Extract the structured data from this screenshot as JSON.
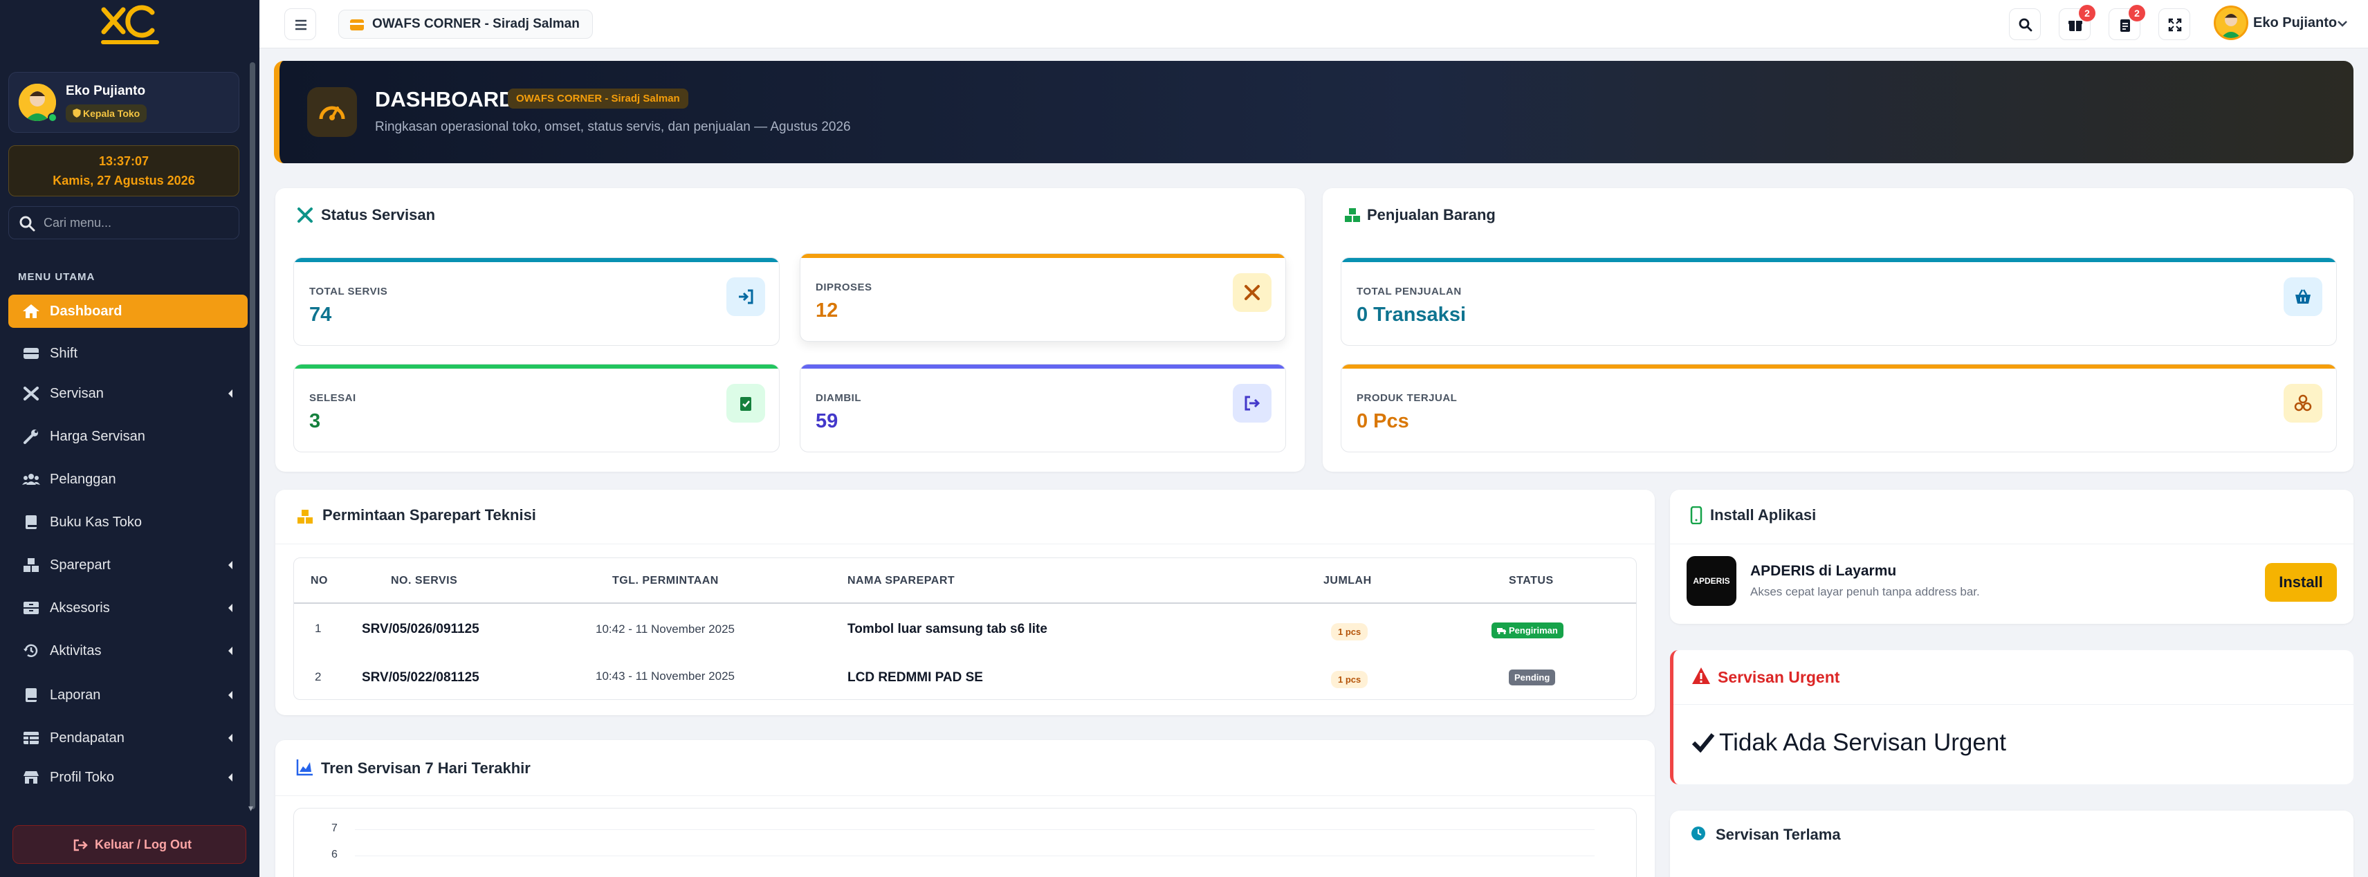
{
  "sidebar": {
    "user_name": "Eko Pujianto",
    "role": "Kepala Toko",
    "clock_time": "13:37:07",
    "clock_date": "Kamis, 27 Agustus 2026",
    "search_placeholder": "Cari menu...",
    "menu_header": "MENU UTAMA",
    "items": [
      {
        "label": "Dashboard",
        "icon": "home-icon",
        "active": true,
        "has_children": false
      },
      {
        "label": "Shift",
        "icon": "tray-icon",
        "active": false,
        "has_children": false
      },
      {
        "label": "Servisan",
        "icon": "tools-icon",
        "active": false,
        "has_children": true
      },
      {
        "label": "Harga Servisan",
        "icon": "wrench-icon",
        "active": false,
        "has_children": false
      },
      {
        "label": "Pelanggan",
        "icon": "users-icon",
        "active": false,
        "has_children": false
      },
      {
        "label": "Buku Kas Toko",
        "icon": "book-icon",
        "active": false,
        "has_children": false
      },
      {
        "label": "Sparepart",
        "icon": "boxes-icon",
        "active": false,
        "has_children": true
      },
      {
        "label": "Aksesoris",
        "icon": "drawer-icon",
        "active": false,
        "has_children": true
      },
      {
        "label": "Aktivitas",
        "icon": "history-icon",
        "active": false,
        "has_children": true
      },
      {
        "label": "Laporan",
        "icon": "report-icon",
        "active": false,
        "has_children": true
      },
      {
        "label": "Pendapatan",
        "icon": "table-icon",
        "active": false,
        "has_children": true
      },
      {
        "label": "Profil Toko",
        "icon": "store-icon",
        "active": false,
        "has_children": true
      }
    ],
    "logout_label": "Keluar / Log Out"
  },
  "topbar": {
    "store_name": "OWAFS CORNER - Siradj Salman",
    "notif_gifts": "2",
    "notif_tasks": "2",
    "user_name": "Eko Pujianto"
  },
  "hero": {
    "title": "DASHBOARD",
    "badge": "OWAFS CORNER - Siradj Salman",
    "subtitle": "Ringkasan operasional toko, omset, status servis, dan penjualan — Agustus 2026"
  },
  "status_servisan": {
    "title": "Status Servisan",
    "stats": [
      {
        "label": "TOTAL SERVIS",
        "value": "74",
        "color": "#0891b2",
        "icon": "sign-in-icon"
      },
      {
        "label": "DIPROSES",
        "value": "12",
        "color": "#d97706",
        "icon": "tools-icon"
      },
      {
        "label": "SELESAI",
        "value": "3",
        "color": "#16a34a",
        "icon": "clipboard-check-icon"
      },
      {
        "label": "DIAMBIL",
        "value": "59",
        "color": "#4f46e5",
        "icon": "sign-out-icon"
      }
    ]
  },
  "penjualan": {
    "title": "Penjualan Barang",
    "stats": [
      {
        "label": "TOTAL PENJUALAN",
        "value": "0 Transaksi",
        "color": "#0891b2",
        "icon": "basket-icon"
      },
      {
        "label": "PRODUK TERJUAL",
        "value": "0 Pcs",
        "color": "#d97706",
        "icon": "coins-icon"
      }
    ]
  },
  "sparepart": {
    "title": "Permintaan Sparepart Teknisi",
    "columns": [
      "NO",
      "NO. SERVIS",
      "TGL. PERMINTAAN",
      "NAMA SPAREPART",
      "JUMLAH",
      "STATUS"
    ],
    "rows": [
      {
        "no": "1",
        "servis": "SRV/05/026/091125",
        "tgl": "10:42 - 11 November 2025",
        "nama": "Tombol luar samsung tab s6 lite",
        "jumlah": "1 pcs",
        "status": "Pengiriman",
        "status_color": "#16a34a"
      },
      {
        "no": "2",
        "servis": "SRV/05/022/081125",
        "tgl": "10:43 - 11 November 2025",
        "nama": "LCD REDMMI PAD SE",
        "jumlah": "1 pcs",
        "status": "Pending",
        "status_color": "#6b7280"
      }
    ]
  },
  "install": {
    "title": "Install Aplikasi",
    "app_icon_text": "APDERIS",
    "app_name": "APDERIS di Layarmu",
    "app_desc": "Akses cepat layar penuh tanpa address bar.",
    "button": "Install"
  },
  "urgent": {
    "title": "Servisan Urgent",
    "empty_text": "Tidak Ada Servisan Urgent"
  },
  "tren": {
    "title": "Tren Servisan 7 Hari Terakhir",
    "y_ticks": [
      "7",
      "6"
    ]
  },
  "terlama": {
    "title": "Servisan Terlama"
  },
  "colors": {
    "accent": "#f39c12",
    "sidebar_bg": "#161e33",
    "danger": "#ef4444"
  }
}
